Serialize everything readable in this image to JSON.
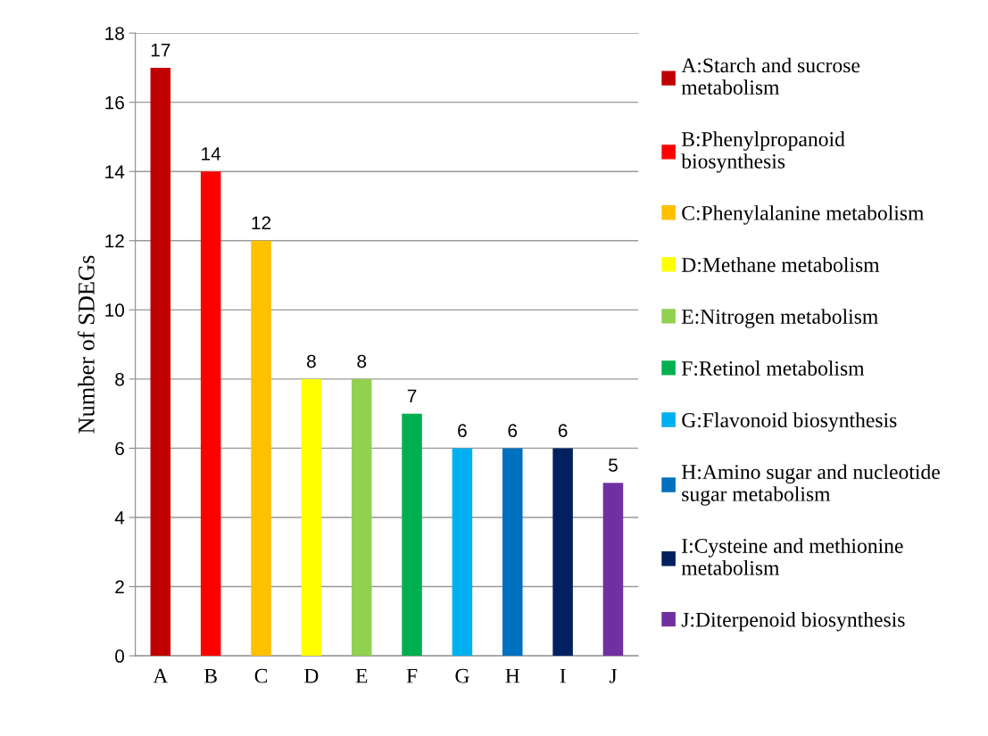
{
  "chart_data": {
    "type": "bar",
    "ylabel": "Number of SDEGs",
    "categories": [
      "A",
      "B",
      "C",
      "D",
      "E",
      "F",
      "G",
      "H",
      "I",
      "J"
    ],
    "series": [
      {
        "name": "A:Starch and sucrose\nmetabolism",
        "color": "#c00000",
        "values": [
          17,
          null,
          null,
          null,
          null,
          null,
          null,
          null,
          null,
          null
        ]
      },
      {
        "name": "B:Phenylpropanoid\nbiosynthesis",
        "color": "#ff0000",
        "values": [
          null,
          14,
          null,
          null,
          null,
          null,
          null,
          null,
          null,
          null
        ]
      },
      {
        "name": "C:Phenylalanine metabolism",
        "color": "#ffc000",
        "values": [
          null,
          null,
          12,
          null,
          null,
          null,
          null,
          null,
          null,
          null
        ]
      },
      {
        "name": "D:Methane metabolism",
        "color": "#ffff00",
        "values": [
          null,
          null,
          null,
          8,
          null,
          null,
          null,
          null,
          null,
          null
        ]
      },
      {
        "name": "E:Nitrogen metabolism",
        "color": "#92d050",
        "values": [
          null,
          null,
          null,
          null,
          8,
          null,
          null,
          null,
          null,
          null
        ]
      },
      {
        "name": "F:Retinol metabolism",
        "color": "#00b050",
        "values": [
          null,
          null,
          null,
          null,
          null,
          7,
          null,
          null,
          null,
          null
        ]
      },
      {
        "name": "G:Flavonoid biosynthesis",
        "color": "#00b0f0",
        "values": [
          null,
          null,
          null,
          null,
          null,
          null,
          6,
          null,
          null,
          null
        ]
      },
      {
        "name": "H:Amino sugar and nucleotide\nsugar metabolism",
        "color": "#0070c0",
        "values": [
          null,
          null,
          null,
          null,
          null,
          null,
          null,
          6,
          null,
          null
        ]
      },
      {
        "name": "I:Cysteine and methionine\nmetabolism",
        "color": "#002060",
        "values": [
          null,
          null,
          null,
          null,
          null,
          null,
          null,
          null,
          6,
          null
        ]
      },
      {
        "name": "J:Diterpenoid biosynthesis",
        "color": "#7030a0",
        "values": [
          null,
          null,
          null,
          null,
          null,
          null,
          null,
          null,
          null,
          5
        ]
      }
    ],
    "ylim": [
      0,
      18
    ],
    "yticks": [
      0,
      2,
      4,
      6,
      8,
      10,
      12,
      14,
      16,
      18
    ],
    "grid": "y",
    "legend": "right",
    "data_labels": true
  }
}
